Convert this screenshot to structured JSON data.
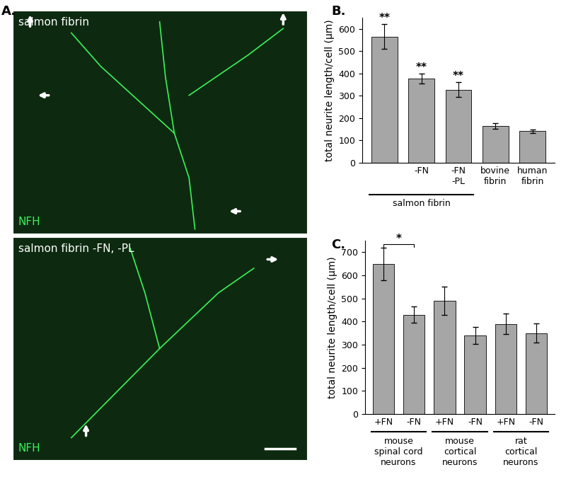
{
  "images": {
    "panel_label": "A.",
    "panels": [
      {
        "title": "salmon fibrin",
        "stain": "NFH"
      },
      {
        "title": "salmon fibrin -FN, -PL",
        "stain": "NFH"
      }
    ]
  },
  "chart_data": [
    {
      "type": "bar",
      "panel_label": "B.",
      "y_label": "total neurite length/cell (μm)",
      "categories": [
        null,
        "-FN",
        "-FN\n-PL",
        "bovine\nfibrin",
        "human\nfibrin"
      ],
      "values": [
        565,
        378,
        328,
        165,
        142
      ],
      "errors": [
        55,
        22,
        32,
        12,
        8
      ],
      "significance": [
        "**",
        "**",
        "**",
        null,
        null
      ],
      "groups": [
        {
          "label": "salmon fibrin",
          "first": 0,
          "last": 2
        }
      ],
      "color": "#a6a6a6",
      "ylim": [
        0,
        650
      ],
      "yticks": [
        0,
        100,
        200,
        300,
        400,
        500,
        600
      ]
    },
    {
      "type": "bar",
      "panel_label": "C.",
      "y_label": "total neurite length/cell (μm)",
      "categories": [
        "+FN",
        "-FN",
        "+FN",
        "-FN",
        "+FN",
        "-FN"
      ],
      "values": [
        650,
        430,
        490,
        340,
        390,
        350
      ],
      "errors": [
        70,
        35,
        60,
        38,
        45,
        42
      ],
      "brackets": [
        {
          "first": 0,
          "last": 1,
          "text": "*"
        }
      ],
      "groups": [
        {
          "label": "mouse\nspinal cord\nneurons",
          "first": 0,
          "last": 1
        },
        {
          "label": "mouse\ncortical\nneurons",
          "first": 2,
          "last": 3
        },
        {
          "label": "rat\ncortical\nneurons",
          "first": 4,
          "last": 5
        }
      ],
      "color": "#a6a6a6",
      "ylim": [
        0,
        750
      ],
      "yticks": [
        0,
        100,
        200,
        300,
        400,
        500,
        600,
        700
      ]
    }
  ]
}
